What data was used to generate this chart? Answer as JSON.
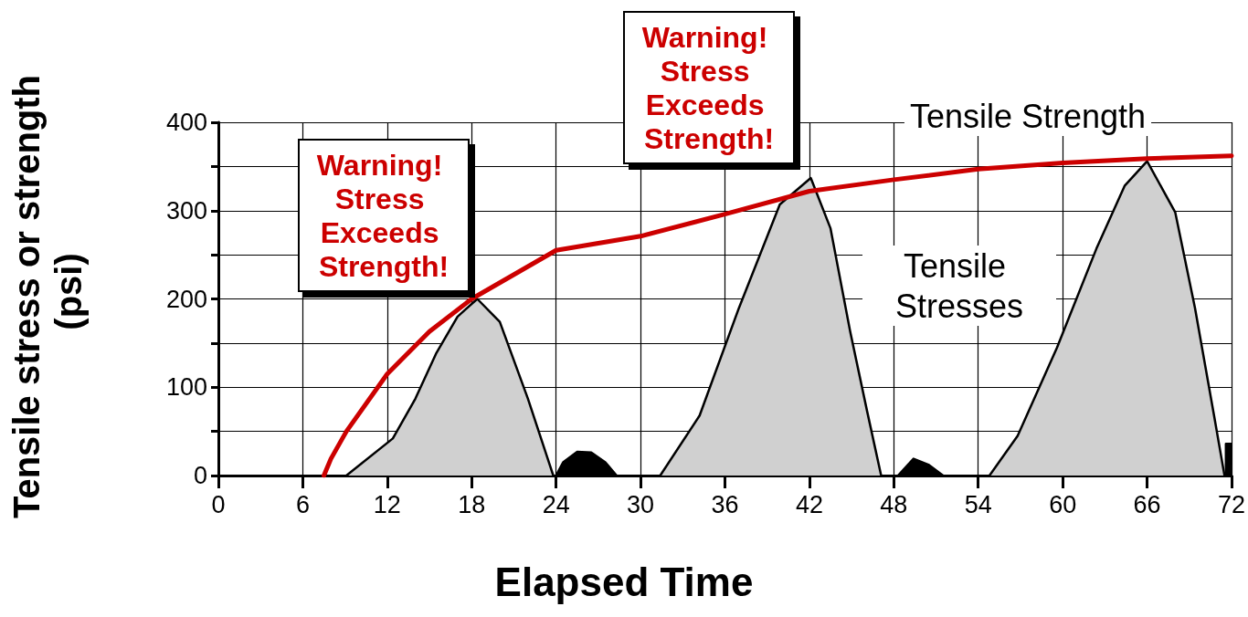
{
  "chart_data": {
    "type": "area",
    "xlabel": "Elapsed Time",
    "ylabel": "Tensile stress or strength (psi)",
    "xlim": [
      0,
      72
    ],
    "xticks": [
      0,
      6,
      12,
      18,
      24,
      30,
      36,
      42,
      48,
      54,
      60,
      66,
      72
    ],
    "ylim": [
      0,
      400
    ],
    "yticks": [
      0,
      {
        "value": 50,
        "label": null
      },
      100,
      {
        "value": 150,
        "label": null
      },
      200,
      {
        "value": 250,
        "label": null
      },
      300,
      {
        "value": 350,
        "label": null
      },
      400
    ],
    "grid": true,
    "marker": "none",
    "series": [
      {
        "color": "#d0d0d0",
        "x": [
          9.1,
          12.4,
          14,
          15.5,
          17,
          18.4,
          20,
          22,
          23.8
        ],
        "values": [
          0,
          42,
          87,
          139,
          180,
          200,
          174,
          87,
          0
        ]
      },
      {
        "color": "#000000",
        "x": [
          24,
          24.5,
          25.5,
          26.5,
          27.5,
          28.3
        ],
        "values": [
          0,
          15,
          27,
          26,
          15,
          0
        ]
      },
      {
        "color": "#d0d0d0",
        "x": [
          31.4,
          34.2,
          37,
          39.9,
          42.1,
          43.5,
          44.9,
          46.1,
          47.1
        ],
        "values": [
          0,
          68,
          190,
          307,
          337,
          280,
          163,
          73,
          0
        ]
      },
      {
        "color": "#000000",
        "x": [
          48.3,
          49.4,
          50.5,
          51.5
        ],
        "values": [
          0,
          19,
          12,
          0
        ]
      },
      {
        "color": "#d0d0d0",
        "x": [
          54.8,
          56.8,
          59.6,
          62.4,
          64.4,
          66,
          68,
          69.4,
          70.8,
          71.5
        ],
        "values": [
          0,
          45,
          145,
          257,
          328,
          356,
          298,
          190,
          64,
          0
        ]
      },
      {
        "color": "#000000",
        "x": [
          71.6,
          71.6,
          72
        ],
        "values": [
          0,
          36,
          36
        ]
      },
      {
        "type": "line",
        "color": "#cc0000",
        "x": [
          7.5,
          8,
          9.1,
          12,
          15,
          18,
          24,
          30,
          36,
          42,
          48,
          54,
          60,
          66,
          72
        ],
        "values": [
          0,
          19,
          50,
          115,
          163,
          200,
          255,
          271,
          296,
          322,
          335,
          347,
          354,
          359,
          362
        ]
      }
    ],
    "annotations": [
      "Tensile Strength",
      "Tensile Stresses",
      "Warning! Stress Exceeds Strength!",
      "Warning! Stress Exceeds Strength!"
    ]
  }
}
